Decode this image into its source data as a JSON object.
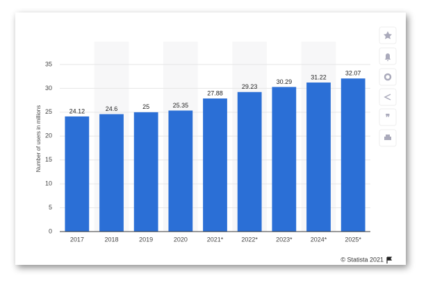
{
  "chart_data": {
    "type": "bar",
    "y_axis_label": "Number of users in millions",
    "categories": [
      "2017",
      "2018",
      "2019",
      "2020",
      "2021*",
      "2022*",
      "2023*",
      "2024*",
      "2025*"
    ],
    "values": [
      24.12,
      24.6,
      25,
      25.35,
      27.88,
      29.23,
      30.29,
      31.22,
      32.07
    ],
    "color": "#2b6fd6",
    "ylim": [
      0,
      35
    ],
    "yticks": [
      0,
      5,
      10,
      15,
      20,
      25,
      30,
      35
    ],
    "grid": true,
    "source": "© Statista 2021"
  }
}
